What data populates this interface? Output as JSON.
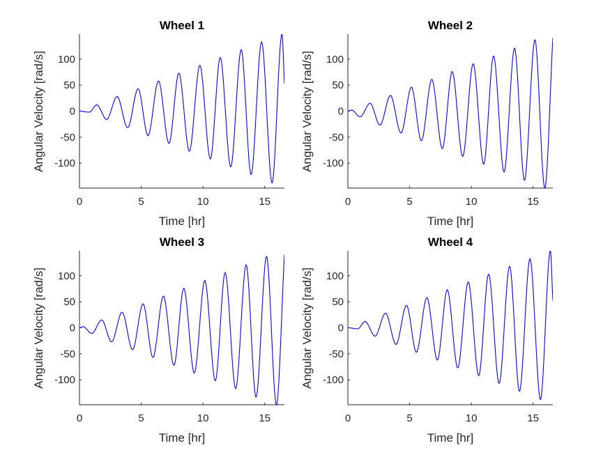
{
  "chart_data": [
    {
      "type": "line",
      "title": "Wheel 1",
      "xlabel": "Time [hr]",
      "ylabel": "Angular Velocity [rad/s]",
      "xlim": [
        0,
        16.6
      ],
      "ylim": [
        -148,
        148
      ],
      "xticks": [
        0,
        5,
        10,
        15
      ],
      "yticks": [
        -100,
        -50,
        0,
        50,
        100
      ],
      "grid": false,
      "color": "#0000ff",
      "series": [
        {
          "x": [
            0,
            0.8,
            1.4,
            2.2,
            3.05,
            3.9,
            4.75,
            5.55,
            6.4,
            7.25,
            8.05,
            8.9,
            9.75,
            10.6,
            11.4,
            12.25,
            13.1,
            13.9,
            14.75,
            15.6,
            16.4,
            16.6
          ],
          "y": [
            0,
            -2,
            12,
            -16,
            28,
            -32,
            43,
            -47,
            58,
            -62,
            73,
            -77,
            88,
            -92,
            103,
            -107,
            118,
            -122,
            133,
            -138,
            148,
            52
          ]
        }
      ]
    },
    {
      "type": "line",
      "title": "Wheel 2",
      "xlabel": "Time [hr]",
      "ylabel": "Angular Velocity [rad/s]",
      "xlim": [
        0,
        16.6
      ],
      "ylim": [
        -148,
        148
      ],
      "xticks": [
        0,
        5,
        10,
        15
      ],
      "yticks": [
        -100,
        -50,
        0,
        50,
        100
      ],
      "grid": false,
      "color": "#0000ff",
      "series": [
        {
          "x": [
            0,
            0.3,
            1.0,
            1.8,
            2.6,
            3.45,
            4.3,
            5.15,
            5.95,
            6.8,
            7.65,
            8.45,
            9.3,
            10.15,
            11.0,
            11.8,
            12.65,
            13.5,
            14.3,
            15.15,
            15.95,
            16.6
          ],
          "y": [
            0,
            2,
            -11,
            15,
            -27,
            30,
            -42,
            46,
            -57,
            61,
            -72,
            76,
            -87,
            91,
            -102,
            106,
            -117,
            121,
            -133,
            137,
            -148,
            141
          ]
        }
      ]
    },
    {
      "type": "line",
      "title": "Wheel 3",
      "xlabel": "Time [hr]",
      "ylabel": "Angular Velocity [rad/s]",
      "xlim": [
        0,
        16.6
      ],
      "ylim": [
        -148,
        148
      ],
      "xticks": [
        0,
        5,
        10,
        15
      ],
      "yticks": [
        -100,
        -50,
        0,
        50,
        100
      ],
      "grid": false,
      "color": "#0000ff",
      "series": [
        {
          "x": [
            0,
            0.3,
            1.0,
            1.8,
            2.6,
            3.45,
            4.3,
            5.15,
            5.95,
            6.8,
            7.65,
            8.45,
            9.3,
            10.15,
            11.0,
            11.8,
            12.65,
            13.5,
            14.3,
            15.15,
            15.95,
            16.6
          ],
          "y": [
            0,
            2,
            -11,
            15,
            -27,
            30,
            -42,
            46,
            -57,
            61,
            -72,
            76,
            -87,
            91,
            -102,
            106,
            -117,
            121,
            -133,
            137,
            -148,
            141
          ]
        }
      ]
    },
    {
      "type": "line",
      "title": "Wheel 4",
      "xlabel": "Time [hr]",
      "ylabel": "Angular Velocity [rad/s]",
      "xlim": [
        0,
        16.6
      ],
      "ylim": [
        -148,
        148
      ],
      "xticks": [
        0,
        5,
        10,
        15
      ],
      "yticks": [
        -100,
        -50,
        0,
        50,
        100
      ],
      "grid": false,
      "color": "#0000ff",
      "series": [
        {
          "x": [
            0,
            0.8,
            1.4,
            2.2,
            3.05,
            3.9,
            4.75,
            5.55,
            6.4,
            7.25,
            8.05,
            8.9,
            9.75,
            10.6,
            11.4,
            12.25,
            13.1,
            13.9,
            14.75,
            15.6,
            16.4,
            16.6
          ],
          "y": [
            0,
            -2,
            12,
            -16,
            28,
            -32,
            43,
            -47,
            58,
            -62,
            73,
            -77,
            88,
            -92,
            103,
            -107,
            118,
            -122,
            133,
            -138,
            148,
            52
          ]
        }
      ]
    }
  ]
}
